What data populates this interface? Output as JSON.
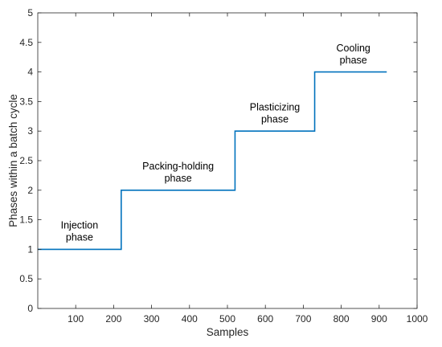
{
  "chart_data": {
    "type": "line",
    "title": "",
    "xlabel": "Samples",
    "ylabel": "Phases within a batch cycle",
    "xlim": [
      0,
      1000
    ],
    "ylim": [
      0,
      5
    ],
    "xticks": [
      100,
      200,
      300,
      400,
      500,
      600,
      700,
      800,
      900,
      1000
    ],
    "xtick_labels": [
      "100",
      "200",
      "300",
      "400",
      "500",
      "600",
      "700",
      "800",
      "900",
      "1000"
    ],
    "yticks": [
      0,
      0.5,
      1,
      1.5,
      2,
      2.5,
      3,
      3.5,
      4,
      4.5,
      5
    ],
    "ytick_labels": [
      "0",
      "0.5",
      "1",
      "1.5",
      "2",
      "2.5",
      "3",
      "3.5",
      "4",
      "4.5",
      "5"
    ],
    "grid": false,
    "series": [
      {
        "color": "#0072bd",
        "x": [
          0,
          220,
          220,
          520,
          520,
          730,
          730,
          920
        ],
        "y": [
          1,
          1,
          2,
          2,
          3,
          3,
          4,
          4
        ]
      }
    ],
    "annotations": [
      {
        "lines": [
          "Injection",
          "phase"
        ],
        "x": 110,
        "y": 1.35
      },
      {
        "lines": [
          "Packing-holding",
          "phase"
        ],
        "x": 370,
        "y": 2.35
      },
      {
        "lines": [
          "Plasticizing",
          "phase"
        ],
        "x": 625,
        "y": 3.35
      },
      {
        "lines": [
          "Cooling",
          "phase"
        ],
        "x": 832,
        "y": 4.35
      }
    ]
  }
}
